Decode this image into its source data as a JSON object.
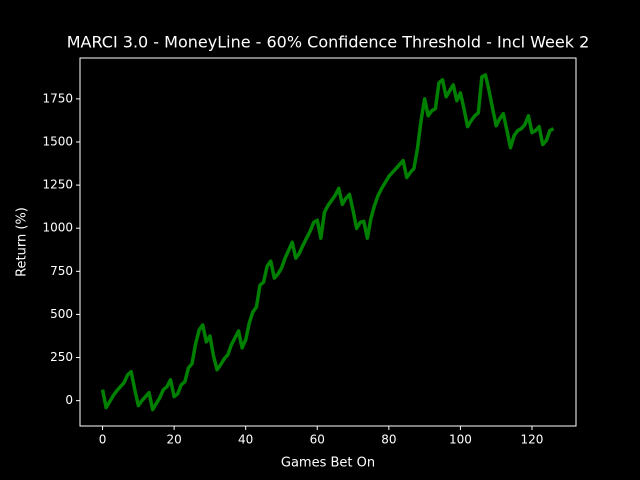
{
  "chart_data": {
    "type": "line",
    "title": "MARCI 3.0 - MoneyLine - 60% Confidence Threshold - Incl Week 2",
    "x_label": "Games Bet On",
    "y_label": "Return (%)",
    "x": [
      0,
      1,
      2,
      3,
      4,
      5,
      6,
      7,
      8,
      9,
      10,
      11,
      12,
      13,
      14,
      15,
      16,
      17,
      18,
      19,
      20,
      21,
      22,
      23,
      24,
      25,
      26,
      27,
      28,
      29,
      30,
      31,
      32,
      33,
      34,
      35,
      36,
      37,
      38,
      39,
      40,
      41,
      42,
      43,
      44,
      45,
      46,
      47,
      48,
      49,
      50,
      51,
      52,
      53,
      54,
      55,
      56,
      57,
      58,
      59,
      60,
      61,
      62,
      63,
      64,
      65,
      66,
      67,
      68,
      69,
      70,
      71,
      72,
      73,
      74,
      75,
      76,
      77,
      78,
      79,
      80,
      81,
      82,
      83,
      84,
      85,
      86,
      87,
      88,
      89,
      90,
      91,
      92,
      93,
      94,
      95,
      96,
      97,
      98,
      99,
      100,
      101,
      102,
      103,
      104,
      105,
      106,
      107,
      108,
      109,
      110,
      111,
      112,
      113,
      114,
      115,
      116,
      117,
      118,
      119,
      120,
      121,
      122,
      123,
      124,
      125,
      126
    ],
    "series": [
      {
        "name": "Return",
        "color": "#008000",
        "values": [
          64,
          -40,
          -6,
          29,
          58,
          81,
          104,
          150,
          168,
          64,
          -29,
          0,
          23,
          46,
          -52,
          -17,
          17,
          64,
          81,
          121,
          23,
          40,
          92,
          110,
          190,
          214,
          329,
          410,
          439,
          341,
          375,
          260,
          179,
          208,
          243,
          266,
          324,
          364,
          404,
          306,
          352,
          450,
          514,
          543,
          670,
          687,
          780,
          809,
          711,
          734,
          768,
          826,
          872,
          919,
          826,
          855,
          901,
          942,
          982,
          1034,
          1046,
          942,
          1092,
          1132,
          1161,
          1190,
          1231,
          1138,
          1173,
          1196,
          1103,
          999,
          1034,
          1040,
          942,
          1057,
          1132,
          1190,
          1231,
          1265,
          1300,
          1323,
          1346,
          1369,
          1392,
          1294,
          1323,
          1346,
          1462,
          1623,
          1750,
          1652,
          1681,
          1693,
          1843,
          1860,
          1762,
          1797,
          1831,
          1739,
          1785,
          1693,
          1589,
          1623,
          1652,
          1669,
          1878,
          1889,
          1797,
          1693,
          1594,
          1635,
          1664,
          1566,
          1467,
          1537,
          1566,
          1577,
          1600,
          1652,
          1554,
          1566,
          1589,
          1485,
          1508,
          1566,
          1577
        ]
      }
    ],
    "xlim": [
      -6.3,
      132.3
    ],
    "ylim": [
      -147,
      1987
    ],
    "xticks": [
      0,
      20,
      40,
      60,
      80,
      100,
      120
    ],
    "yticks": [
      0,
      250,
      500,
      750,
      1000,
      1250,
      1500,
      1750
    ]
  }
}
